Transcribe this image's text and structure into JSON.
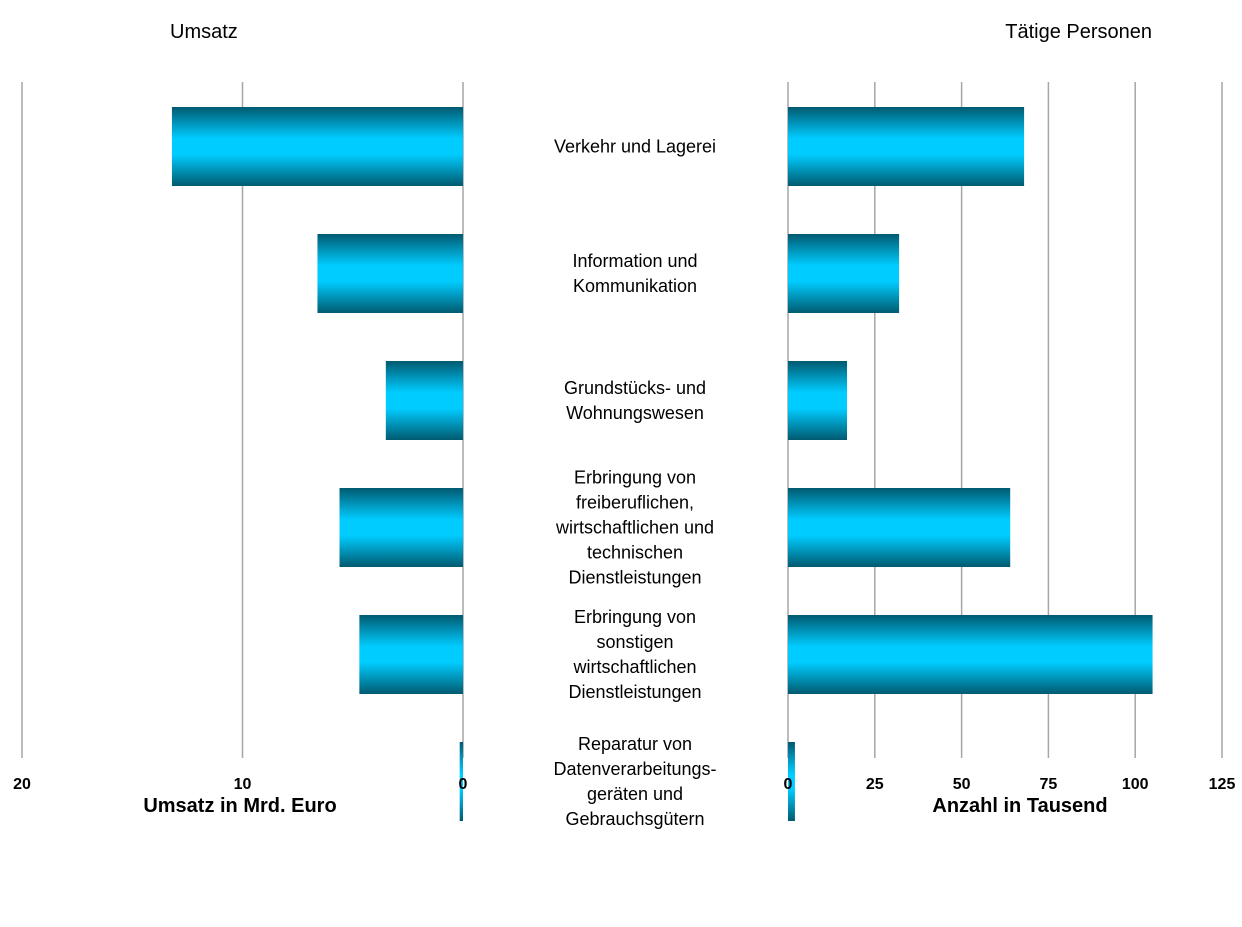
{
  "chart_data": {
    "type": "bar",
    "orientation": "horizontal",
    "layout": "back-to-back",
    "categories": [
      [
        "Verkehr und Lagerei"
      ],
      [
        "Information und",
        "Kommunikation"
      ],
      [
        "Grundstücks- und",
        "Wohnungswesen"
      ],
      [
        "Erbringung von",
        "freiberuflichen,",
        "wirtschaftlichen und",
        "technischen",
        "Dienstleistungen"
      ],
      [
        "Erbringung von",
        "sonstigen",
        "wirtschaftlichen",
        "Dienstleistungen"
      ],
      [
        "Reparatur von",
        "Datenverarbeitungs-",
        "geräten und",
        "Gebrauchsgütern"
      ]
    ],
    "left": {
      "title": "Umsatz",
      "xlabel": "Umsatz in Mrd. Euro",
      "xlim": [
        0,
        20
      ],
      "ticks": [
        20,
        10,
        0
      ],
      "reversed": true,
      "grid": true,
      "values": [
        13.2,
        6.6,
        3.5,
        5.6,
        4.7,
        0.15
      ]
    },
    "right": {
      "title": "Tätige Personen",
      "xlabel": "Anzahl in Tausend",
      "xlim": [
        0,
        125
      ],
      "ticks": [
        0,
        25,
        50,
        75,
        100,
        125
      ],
      "reversed": false,
      "grid": true,
      "values": [
        68,
        32,
        17,
        64,
        105,
        2
      ]
    },
    "colors": {
      "bar_center": "#00CCFF",
      "bar_edge": "#005A70",
      "grid": "#A6A6A6"
    }
  }
}
